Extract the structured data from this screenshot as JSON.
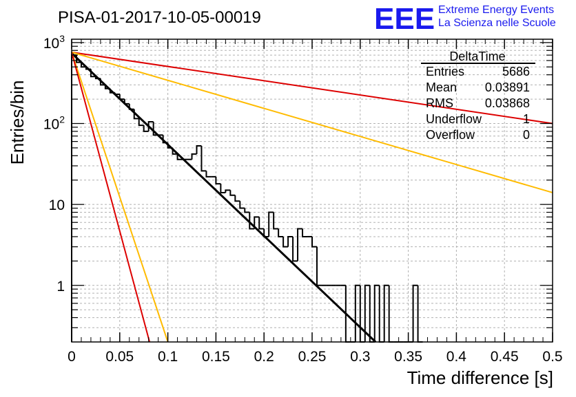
{
  "header": {
    "title": "PISA-01-2017-10-05-00019",
    "logo_text": "EEE",
    "logo_line1": "Extreme Energy Events",
    "logo_line2": "La Scienza nelle Scuole"
  },
  "stats_box": {
    "title": "DeltaTime",
    "rows": [
      {
        "label": "Entries",
        "value": "5686"
      },
      {
        "label": "Mean",
        "value": "0.03891"
      },
      {
        "label": "RMS",
        "value": "0.03868"
      },
      {
        "label": "Underflow",
        "value": "1"
      },
      {
        "label": "Overflow",
        "value": "0"
      }
    ]
  },
  "colors": {
    "histogram": "#000000",
    "fit_main": "#000000",
    "fit_red": "#dd0000",
    "fit_orange": "#ffbb00",
    "grid": "#b0b0b0",
    "logo": "#1a1aee"
  },
  "chart_data": {
    "type": "histogram",
    "title": "PISA-01-2017-10-05-00019",
    "xlabel": "Time difference [s]",
    "ylabel": "Entries/bin",
    "xlim": [
      0,
      0.5
    ],
    "ylim": [
      0.2,
      1100
    ],
    "yscale": "log",
    "grid": true,
    "x_ticks": [
      "0",
      "0.05",
      "0.1",
      "0.15",
      "0.2",
      "0.25",
      "0.3",
      "0.35",
      "0.4",
      "0.45",
      "0.5"
    ],
    "y_ticks": [
      "1",
      "10",
      "10^2",
      "10^3"
    ],
    "bin_width": 0.005,
    "series": [
      {
        "name": "DeltaTime",
        "bins": [
          {
            "x": 0.0,
            "y": 700
          },
          {
            "x": 0.005,
            "y": 570
          },
          {
            "x": 0.01,
            "y": 500
          },
          {
            "x": 0.015,
            "y": 470
          },
          {
            "x": 0.02,
            "y": 380
          },
          {
            "x": 0.025,
            "y": 360
          },
          {
            "x": 0.03,
            "y": 300
          },
          {
            "x": 0.035,
            "y": 270
          },
          {
            "x": 0.04,
            "y": 240
          },
          {
            "x": 0.045,
            "y": 230
          },
          {
            "x": 0.05,
            "y": 200
          },
          {
            "x": 0.055,
            "y": 175
          },
          {
            "x": 0.06,
            "y": 150
          },
          {
            "x": 0.065,
            "y": 115
          },
          {
            "x": 0.07,
            "y": 95
          },
          {
            "x": 0.075,
            "y": 80
          },
          {
            "x": 0.08,
            "y": 105
          },
          {
            "x": 0.085,
            "y": 72
          },
          {
            "x": 0.09,
            "y": 72
          },
          {
            "x": 0.095,
            "y": 58
          },
          {
            "x": 0.1,
            "y": 50
          },
          {
            "x": 0.105,
            "y": 42
          },
          {
            "x": 0.11,
            "y": 36
          },
          {
            "x": 0.115,
            "y": 36
          },
          {
            "x": 0.12,
            "y": 36
          },
          {
            "x": 0.125,
            "y": 42
          },
          {
            "x": 0.13,
            "y": 53
          },
          {
            "x": 0.135,
            "y": 26
          },
          {
            "x": 0.14,
            "y": 22
          },
          {
            "x": 0.145,
            "y": 22
          },
          {
            "x": 0.15,
            "y": 18
          },
          {
            "x": 0.155,
            "y": 14
          },
          {
            "x": 0.16,
            "y": 15
          },
          {
            "x": 0.165,
            "y": 13
          },
          {
            "x": 0.17,
            "y": 11
          },
          {
            "x": 0.175,
            "y": 9
          },
          {
            "x": 0.18,
            "y": 8
          },
          {
            "x": 0.185,
            "y": 5
          },
          {
            "x": 0.19,
            "y": 7
          },
          {
            "x": 0.195,
            "y": 5
          },
          {
            "x": 0.2,
            "y": 4
          },
          {
            "x": 0.205,
            "y": 8
          },
          {
            "x": 0.21,
            "y": 5
          },
          {
            "x": 0.215,
            "y": 4
          },
          {
            "x": 0.22,
            "y": 3
          },
          {
            "x": 0.225,
            "y": 4
          },
          {
            "x": 0.23,
            "y": 2
          },
          {
            "x": 0.235,
            "y": 5
          },
          {
            "x": 0.24,
            "y": 4
          },
          {
            "x": 0.245,
            "y": 4
          },
          {
            "x": 0.25,
            "y": 3
          },
          {
            "x": 0.255,
            "y": 1
          },
          {
            "x": 0.26,
            "y": 1
          },
          {
            "x": 0.265,
            "y": 1
          },
          {
            "x": 0.27,
            "y": 1
          },
          {
            "x": 0.275,
            "y": 1
          },
          {
            "x": 0.28,
            "y": 1
          },
          {
            "x": 0.285,
            "y": 0
          },
          {
            "x": 0.29,
            "y": 0
          },
          {
            "x": 0.295,
            "y": 1
          },
          {
            "x": 0.3,
            "y": 0
          },
          {
            "x": 0.305,
            "y": 1
          },
          {
            "x": 0.31,
            "y": 0
          },
          {
            "x": 0.315,
            "y": 1
          },
          {
            "x": 0.32,
            "y": 0
          },
          {
            "x": 0.325,
            "y": 1
          },
          {
            "x": 0.33,
            "y": 0
          },
          {
            "x": 0.335,
            "y": 0
          },
          {
            "x": 0.34,
            "y": 0
          },
          {
            "x": 0.345,
            "y": 0
          },
          {
            "x": 0.35,
            "y": 0
          },
          {
            "x": 0.355,
            "y": 1
          },
          {
            "x": 0.36,
            "y": 0
          }
        ]
      }
    ],
    "fit_lines": [
      {
        "color": "#000000",
        "x": [
          0.0,
          0.316
        ],
        "y": [
          740,
          0.2
        ]
      },
      {
        "color": "#dd0000",
        "x": [
          0.0,
          0.5
        ],
        "y": [
          760,
          100
        ]
      },
      {
        "color": "#ffbb00",
        "x": [
          0.0,
          0.5
        ],
        "y": [
          760,
          14
        ]
      },
      {
        "color": "#ffbb00",
        "x": [
          0.0,
          0.1
        ],
        "y": [
          760,
          0.2
        ]
      },
      {
        "color": "#dd0000",
        "x": [
          0.0,
          0.081
        ],
        "y": [
          760,
          0.2
        ]
      }
    ]
  }
}
